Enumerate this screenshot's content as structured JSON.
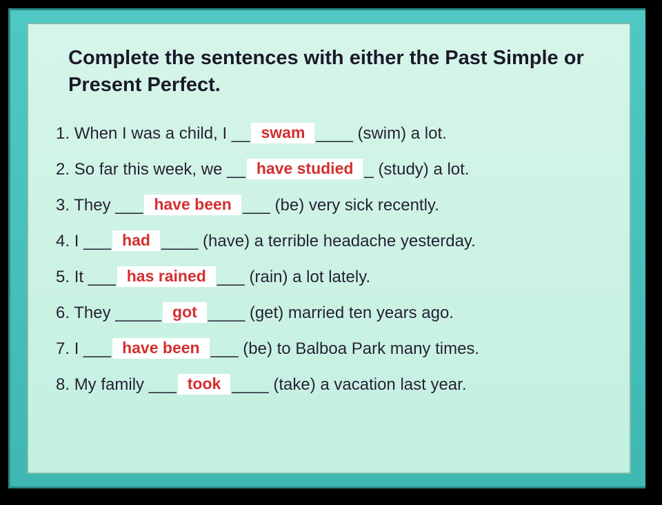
{
  "title": "Complete the sentences with either the Past Simple or Present Perfect.",
  "sentences": [
    {
      "num": "1.",
      "pre": "When I was a child, I __",
      "answer": "swam",
      "post": "____ (swim) a lot."
    },
    {
      "num": "2.",
      "pre": "So far this week, we __",
      "answer": "have studied",
      "post": "_  (study) a lot."
    },
    {
      "num": "3.",
      "pre": "They ___",
      "answer": "have been",
      "post": "___ (be) very sick recently."
    },
    {
      "num": "4.",
      "pre": "I ___",
      "answer": "had",
      "post": "____ (have) a terrible headache yesterday."
    },
    {
      "num": "5.",
      "pre": "It ___",
      "answer": "has rained",
      "post": "___  (rain) a lot lately."
    },
    {
      "num": "6.",
      "pre": "They _____",
      "answer": "got",
      "post": "____ (get) married ten years ago."
    },
    {
      "num": "7.",
      "pre": "I ___",
      "answer": "have been",
      "post": "___  (be) to Balboa Park many times."
    },
    {
      "num": "8.",
      "pre": "My family ___",
      "answer": "took",
      "post": "____ (take) a vacation last year."
    }
  ],
  "colors": {
    "outer_bg": "#4fc8c4",
    "inner_bg": "#d6f5e8",
    "answer_bg": "#ffffff",
    "answer_text": "#d32f2f",
    "body_text": "#222233"
  }
}
